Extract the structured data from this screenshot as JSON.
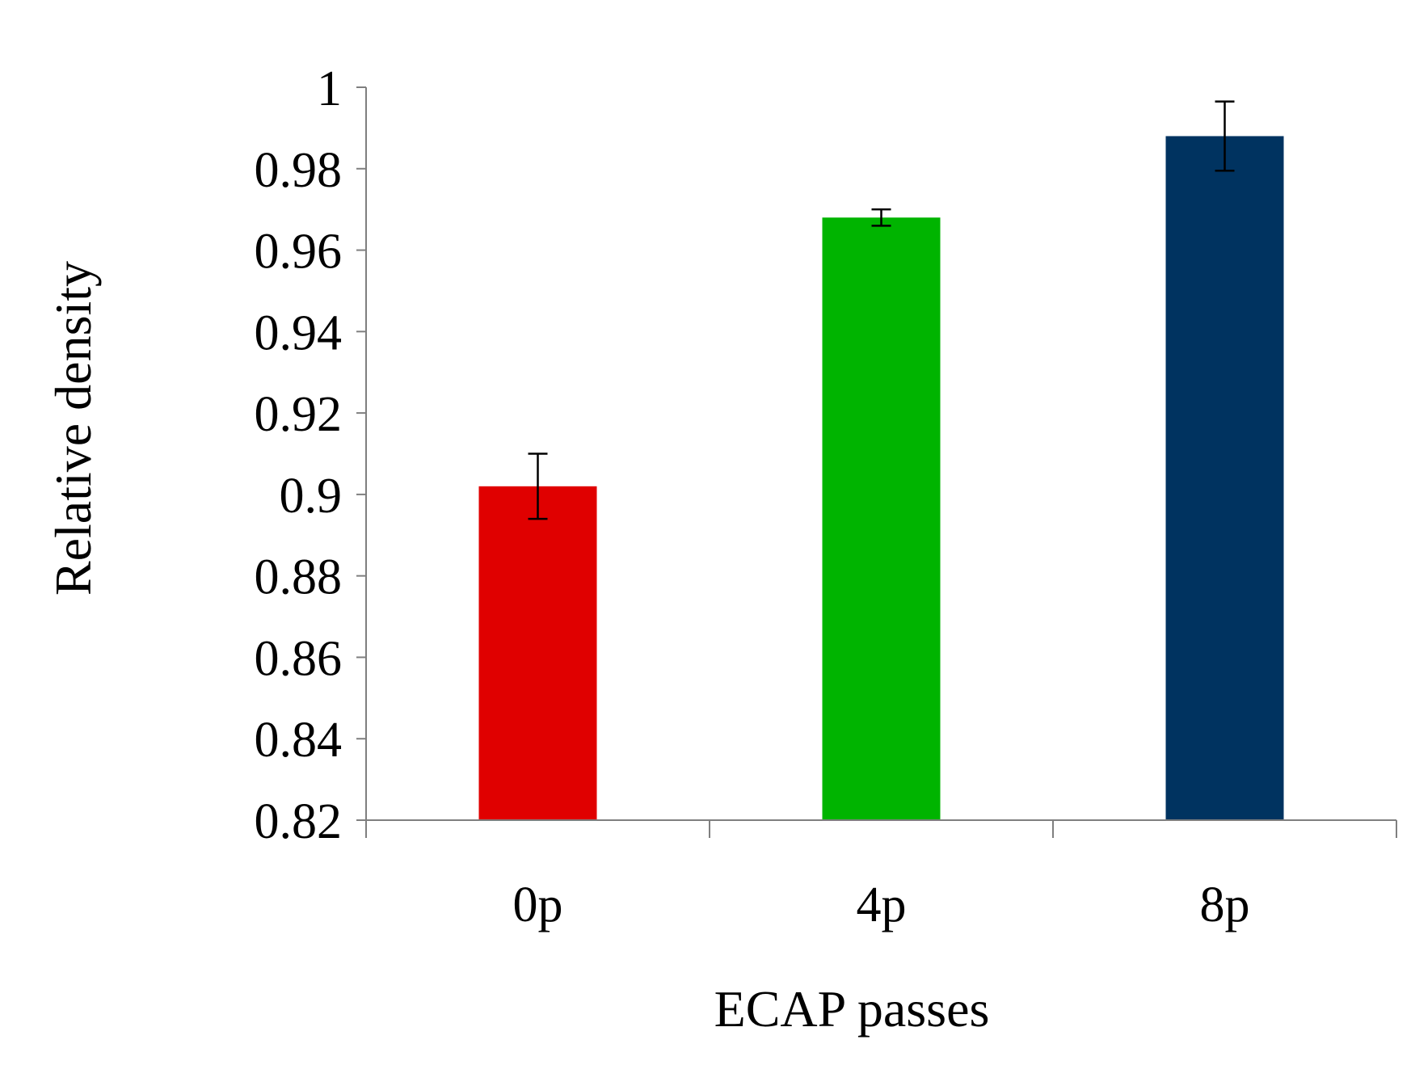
{
  "chart_data": {
    "type": "bar",
    "title": "",
    "xlabel": "ECAP passes",
    "ylabel": "Relative density",
    "categories": [
      "0p",
      "4p",
      "8p"
    ],
    "values": [
      0.902,
      0.968,
      0.988
    ],
    "errors": [
      0.008,
      0.002,
      0.0085
    ],
    "colors": [
      "#e00000",
      "#00b400",
      "#003360"
    ],
    "ylim": [
      0.82,
      1.0
    ],
    "yticks": [
      0.82,
      0.84,
      0.86,
      0.88,
      0.9,
      0.92,
      0.94,
      0.96,
      0.98,
      1
    ],
    "ytick_labels": [
      "0.82",
      "0.84",
      "0.86",
      "0.88",
      "0.9",
      "0.92",
      "0.94",
      "0.96",
      "0.98",
      "1"
    ],
    "grid": false,
    "legend": "none"
  }
}
